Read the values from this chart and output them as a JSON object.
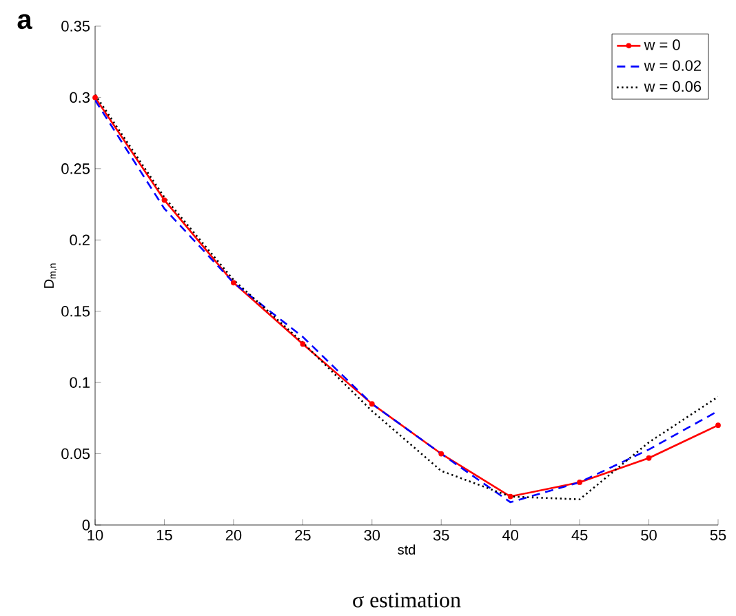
{
  "chart_data": {
    "type": "line",
    "xlabel": "std",
    "ylabel": "D$_{m,n}$",
    "annotations": [
      "**a**",
      "σ  estimation"
    ],
    "x": [
      10,
      15,
      20,
      25,
      30,
      35,
      40,
      45,
      50,
      55
    ],
    "series": [
      {
        "name": "w = 0",
        "color": "#ff0000",
        "line_style": "solid",
        "marker": "circle",
        "values": [
          0.3,
          0.228,
          0.17,
          0.127,
          0.085,
          0.05,
          0.02,
          0.03,
          0.047,
          0.07
        ]
      },
      {
        "name": "w = 0.02",
        "color": "#0000ff",
        "line_style": "dashed",
        "marker": "none",
        "values": [
          0.298,
          0.222,
          0.17,
          0.132,
          0.085,
          0.05,
          0.016,
          0.03,
          0.053,
          0.08
        ]
      },
      {
        "name": "w = 0.06",
        "color": "#000000",
        "line_style": "dotted",
        "marker": "none",
        "values": [
          0.302,
          0.23,
          0.172,
          0.128,
          0.08,
          0.038,
          0.02,
          0.018,
          0.058,
          0.09
        ]
      }
    ],
    "xlim": [
      10,
      55
    ],
    "ylim": [
      0,
      0.35
    ],
    "xticks": [
      10,
      15,
      20,
      25,
      30,
      35,
      40,
      45,
      50,
      55
    ],
    "yticks": [
      0,
      0.05,
      0.1,
      0.15,
      0.2,
      0.25,
      0.3,
      0.35
    ],
    "grid": false,
    "legend": "top right"
  }
}
